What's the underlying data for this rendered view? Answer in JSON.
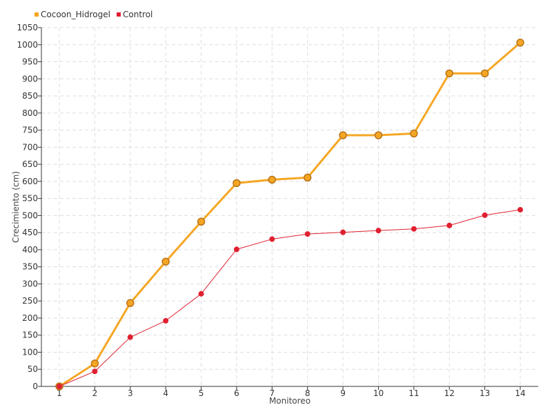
{
  "chart_data": {
    "type": "line",
    "title": "",
    "xlabel": "Monitoreo",
    "ylabel": "Crecimiento (cm)",
    "categories": [
      "1",
      "2",
      "3",
      "4",
      "5",
      "6",
      "7",
      "8",
      "9",
      "10",
      "11",
      "12",
      "13",
      "14"
    ],
    "ylim": [
      0,
      1050
    ],
    "ytick_step": 50,
    "grid": true,
    "legend_position": "top-left",
    "series": [
      {
        "name": "Cocoon_Hidrogel",
        "color": "#f5a623",
        "values": [
          0,
          67,
          244,
          365,
          482,
          595,
          605,
          611,
          735,
          735,
          740,
          916,
          916,
          1006
        ]
      },
      {
        "name": "Control",
        "color": "#e02030",
        "values": [
          0,
          44,
          144,
          192,
          271,
          401,
          431,
          446,
          451,
          456,
          461,
          471,
          501,
          517
        ]
      }
    ]
  }
}
